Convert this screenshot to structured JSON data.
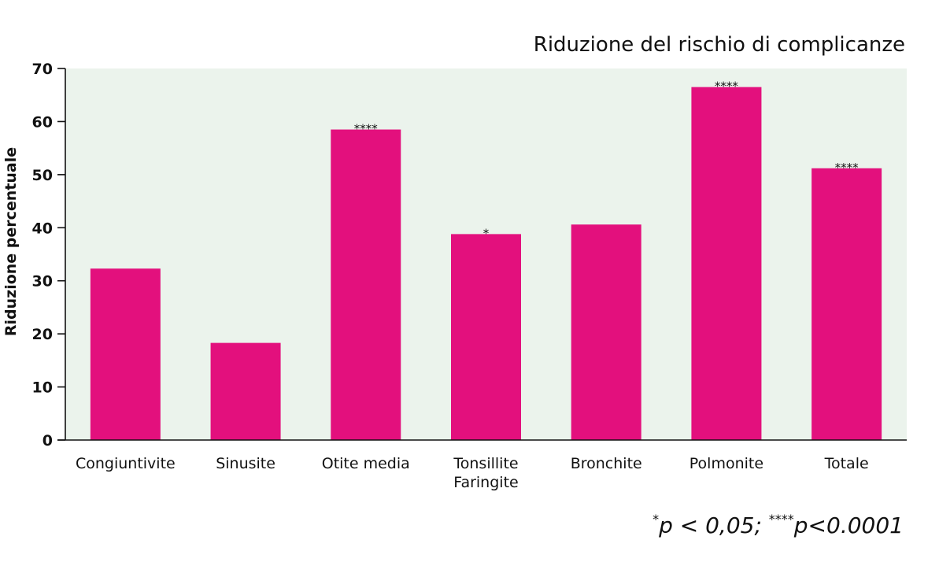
{
  "chart_data": {
    "type": "bar",
    "title": "Riduzione del rischio di complicanze",
    "ylabel": "Riduzione percentuale",
    "xlabel": "",
    "ylim": [
      0,
      70
    ],
    "yticks": [
      "0",
      "10",
      "20",
      "30",
      "40",
      "50",
      "60",
      "70"
    ],
    "categories": [
      [
        "Congiuntivite"
      ],
      [
        "Sinusite"
      ],
      [
        "Otite media"
      ],
      [
        "Tonsillite",
        "Faringite"
      ],
      [
        "Bronchite"
      ],
      [
        "Polmonite"
      ],
      [
        "Totale"
      ]
    ],
    "values": [
      32.3,
      18.3,
      58.5,
      38.8,
      40.6,
      66.5,
      51.2
    ],
    "annotations": [
      "",
      "",
      "****",
      "*",
      "",
      "****",
      "****"
    ],
    "footnote": {
      "mark1": "*",
      "text1": "p < 0,05; ",
      "mark2": "****",
      "text2": "p<0.0001"
    },
    "grid": false,
    "colors": {
      "bar": "#e3107d",
      "plot_background": "#ebf3ec",
      "axis": "#111111"
    }
  }
}
